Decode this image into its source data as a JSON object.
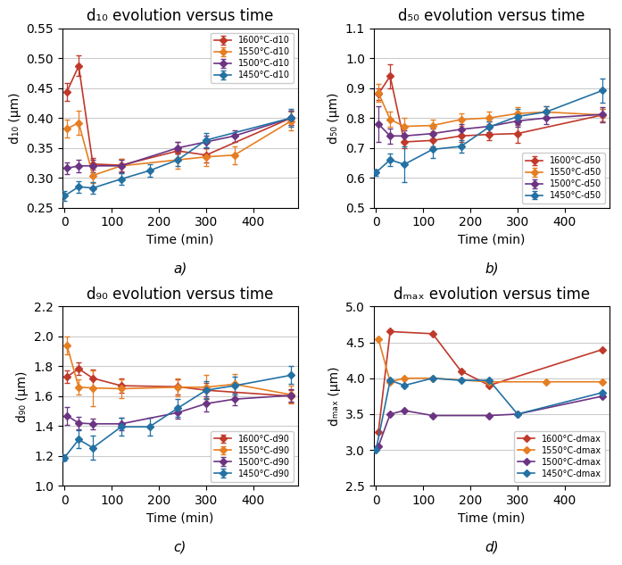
{
  "chart_data": [
    {
      "type": "line",
      "title": "d₁₀ evolution versus time",
      "xlabel": "Time (min)",
      "ylabel": "d₁₀ (μm)",
      "annotations": [
        "a)"
      ],
      "xlim": [
        -5,
        495
      ],
      "xticks": [
        0,
        100,
        200,
        300,
        400
      ],
      "ylim": [
        0.25,
        0.55
      ],
      "yticks": [
        0.25,
        {
          "value": 0.3,
          "label": "0.30"
        },
        0.35,
        {
          "value": 0.4,
          "label": "0.40"
        },
        0.45,
        {
          "value": 0.5,
          "label": "0.50"
        },
        0.55
      ],
      "grid": "y",
      "legend": "upper right",
      "marker": "D",
      "series": [
        {
          "name": "1600°C-d10",
          "color": "#c0392b",
          "x": [
            5,
            30,
            60,
            120,
            240,
            300,
            480
          ],
          "values": [
            0.444,
            0.487,
            0.323,
            0.321,
            0.345,
            0.338,
            0.4
          ],
          "yerr": [
            0.015,
            0.017,
            0.01,
            0.01,
            0.015,
            0.012,
            0.012
          ]
        },
        {
          "name": "1550°C-d10",
          "color": "#e67e22",
          "x": [
            5,
            30,
            60,
            120,
            240,
            300,
            360,
            480
          ],
          "values": [
            0.382,
            0.392,
            0.304,
            0.32,
            0.33,
            0.335,
            0.338,
            0.395
          ],
          "yerr": [
            0.015,
            0.02,
            0.012,
            0.012,
            0.015,
            0.015,
            0.015,
            0.015
          ]
        },
        {
          "name": "1500°C-d10",
          "color": "#6c3483",
          "x": [
            5,
            30,
            60,
            120,
            240,
            300,
            360,
            480
          ],
          "values": [
            0.316,
            0.32,
            0.32,
            0.32,
            0.35,
            0.36,
            0.37,
            0.4
          ],
          "yerr": [
            0.01,
            0.01,
            0.01,
            0.01,
            0.01,
            0.01,
            0.01,
            0.012
          ]
        },
        {
          "name": "1450°C-d10",
          "color": "#2471a3",
          "x": [
            0,
            30,
            60,
            120,
            180,
            240,
            300,
            480
          ],
          "values": [
            0.27,
            0.285,
            0.283,
            0.298,
            0.312,
            0.33,
            0.363,
            0.4
          ],
          "yerr": [
            0.008,
            0.01,
            0.01,
            0.01,
            0.01,
            0.01,
            0.012,
            0.015
          ]
        }
      ]
    },
    {
      "type": "line",
      "title": "d₅₀ evolution versus time",
      "xlabel": "Time (min)",
      "ylabel": "d₅₀ (μm)",
      "annotations": [
        "b)"
      ],
      "xlim": [
        -5,
        495
      ],
      "xticks": [
        0,
        100,
        200,
        300,
        400
      ],
      "ylim": [
        0.5,
        1.1
      ],
      "yticks": [
        0.5,
        0.6,
        0.7,
        0.8,
        0.9,
        1.0,
        1.1
      ],
      "grid": "y",
      "legend": "lower right",
      "marker": "D",
      "series": [
        {
          "name": "1600°C-d50",
          "color": "#c0392b",
          "x": [
            5,
            30,
            60,
            120,
            180,
            240,
            300,
            480
          ],
          "values": [
            0.88,
            0.94,
            0.72,
            0.725,
            0.74,
            0.745,
            0.748,
            0.81
          ],
          "yerr": [
            0.02,
            0.04,
            0.02,
            0.02,
            0.02,
            0.02,
            0.03,
            0.02
          ]
        },
        {
          "name": "1550°C-d50",
          "color": "#e67e22",
          "x": [
            5,
            30,
            60,
            120,
            180,
            240,
            300,
            360,
            480
          ],
          "values": [
            0.885,
            0.795,
            0.772,
            0.775,
            0.795,
            0.8,
            0.815,
            0.82,
            0.81
          ],
          "yerr": [
            0.03,
            0.025,
            0.03,
            0.02,
            0.02,
            0.02,
            0.02,
            0.02,
            0.02
          ]
        },
        {
          "name": "1500°C-d50",
          "color": "#6c3483",
          "x": [
            5,
            30,
            60,
            120,
            180,
            240,
            300,
            360,
            480
          ],
          "values": [
            0.78,
            0.74,
            0.74,
            0.748,
            0.762,
            0.772,
            0.79,
            0.8,
            0.812
          ],
          "yerr": [
            0.06,
            0.025,
            0.02,
            0.018,
            0.018,
            0.018,
            0.02,
            0.02,
            0.025
          ]
        },
        {
          "name": "1450°C-d50",
          "color": "#2471a3",
          "x": [
            0,
            30,
            60,
            120,
            180,
            240,
            300,
            360,
            480
          ],
          "values": [
            0.618,
            0.66,
            0.645,
            0.695,
            0.705,
            0.77,
            0.805,
            0.82,
            0.892
          ],
          "yerr": [
            0.01,
            0.02,
            0.06,
            0.03,
            0.02,
            0.02,
            0.025,
            0.02,
            0.04
          ]
        }
      ]
    },
    {
      "type": "line",
      "title": "d₉₀ evolution versus time",
      "xlabel": "Time (min)",
      "ylabel": "d₉₀ (μm)",
      "annotations": [
        "c)"
      ],
      "xlim": [
        -5,
        495
      ],
      "xticks": [
        0,
        100,
        200,
        300,
        400
      ],
      "ylim": [
        1.0,
        2.2
      ],
      "yticks": [
        1.0,
        1.2,
        1.4,
        1.6,
        1.8,
        2.0,
        2.2
      ],
      "grid": "y",
      "legend": "lower right",
      "marker": "D",
      "series": [
        {
          "name": "1600°C-d90",
          "color": "#c0392b",
          "x": [
            5,
            30,
            60,
            120,
            240,
            300,
            480
          ],
          "values": [
            1.73,
            1.783,
            1.72,
            1.67,
            1.663,
            1.64,
            1.6
          ],
          "yerr": [
            0.04,
            0.04,
            0.06,
            0.05,
            0.05,
            0.05,
            0.04
          ]
        },
        {
          "name": "1550°C-d90",
          "color": "#e67e22",
          "x": [
            5,
            30,
            60,
            120,
            240,
            300,
            360,
            480
          ],
          "values": [
            1.94,
            1.66,
            1.655,
            1.65,
            1.66,
            1.66,
            1.68,
            1.61
          ],
          "yerr": [
            0.06,
            0.05,
            0.12,
            0.06,
            0.06,
            0.08,
            0.07,
            0.06
          ]
        },
        {
          "name": "1500°C-d90",
          "color": "#6c3483",
          "x": [
            5,
            30,
            60,
            120,
            240,
            300,
            360,
            480
          ],
          "values": [
            1.47,
            1.42,
            1.415,
            1.415,
            1.49,
            1.55,
            1.58,
            1.605
          ],
          "yerr": [
            0.06,
            0.04,
            0.035,
            0.04,
            0.04,
            0.05,
            0.04,
            0.04
          ]
        },
        {
          "name": "1450°C-d90",
          "color": "#2471a3",
          "x": [
            0,
            30,
            60,
            120,
            180,
            240,
            300,
            360,
            480
          ],
          "values": [
            1.19,
            1.31,
            1.255,
            1.395,
            1.395,
            1.52,
            1.64,
            1.67,
            1.74
          ],
          "yerr": [
            0.02,
            0.06,
            0.08,
            0.06,
            0.06,
            0.06,
            0.06,
            0.06,
            0.06
          ]
        }
      ]
    },
    {
      "type": "line",
      "title": "dₘₐₓ evolution versus time",
      "xlabel": "Time (min)",
      "ylabel": "dₘₐₓ (μm)",
      "annotations": [
        "d)"
      ],
      "xlim": [
        -5,
        495
      ],
      "xticks": [
        0,
        100,
        200,
        300,
        400
      ],
      "ylim": [
        2.5,
        5.0
      ],
      "yticks": [
        2.5,
        3.0,
        3.5,
        4.0,
        4.5,
        5.0
      ],
      "grid": "y",
      "legend": "lower right",
      "marker": "D",
      "series": [
        {
          "name": "1600°C-dmax",
          "color": "#c0392b",
          "x": [
            5,
            30,
            120,
            180,
            240,
            480
          ],
          "values": [
            3.25,
            4.65,
            4.62,
            4.1,
            3.9,
            4.4
          ]
        },
        {
          "name": "1550°C-dmax",
          "color": "#e67e22",
          "x": [
            5,
            30,
            60,
            120,
            240,
            360,
            480
          ],
          "values": [
            4.55,
            3.95,
            4.0,
            4.0,
            3.95,
            3.95,
            3.95
          ]
        },
        {
          "name": "1500°C-dmax",
          "color": "#6c3483",
          "x": [
            5,
            30,
            60,
            120,
            240,
            300,
            480
          ],
          "values": [
            3.05,
            3.5,
            3.55,
            3.48,
            3.48,
            3.5,
            3.75
          ]
        },
        {
          "name": "1450°C-dmax",
          "color": "#2471a3",
          "x": [
            0,
            30,
            60,
            120,
            180,
            240,
            300,
            480
          ],
          "values": [
            3.0,
            3.97,
            3.9,
            4.0,
            3.97,
            3.97,
            3.5,
            3.8
          ]
        }
      ]
    }
  ]
}
